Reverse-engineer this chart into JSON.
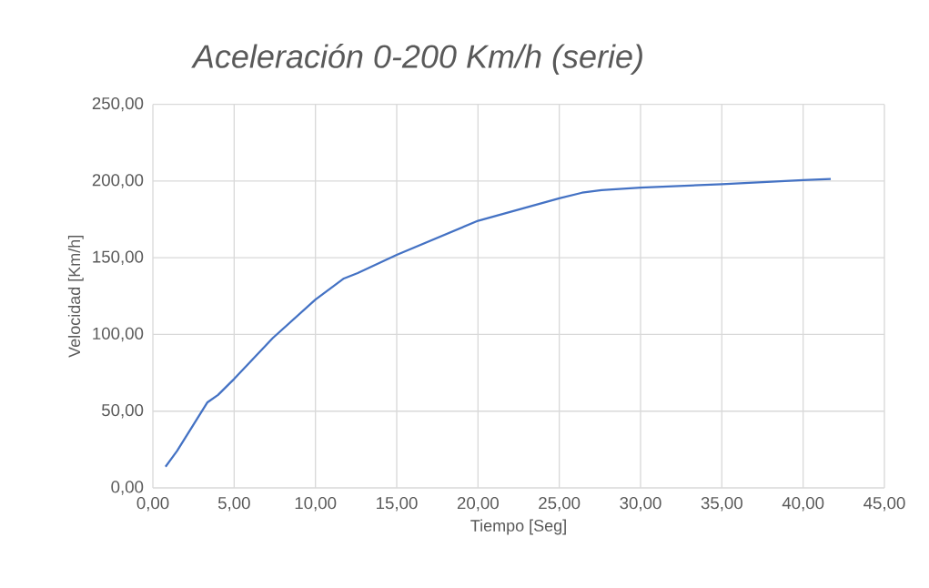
{
  "chart_data": {
    "type": "line",
    "title": "Aceleración 0-200 Km/h (serie)",
    "xlabel": "Tiempo [Seg]",
    "ylabel": "Velocidad [Km/h]",
    "x": [
      0.78,
      1.49,
      3.36,
      4.01,
      5,
      7.37,
      10,
      11.75,
      12.6,
      15,
      20,
      25,
      26.4,
      27.6,
      30,
      35,
      40,
      41.7
    ],
    "values": [
      13.8,
      24.1,
      55.8,
      60.6,
      71,
      97.6,
      122.7,
      136.5,
      140,
      151.9,
      174.1,
      188.8,
      192.4,
      194.1,
      195.7,
      198,
      200.6,
      201.4
    ],
    "color": "#4472c4",
    "xlim": [
      0,
      45
    ],
    "ylim": [
      0,
      250
    ],
    "xticks": [
      {
        "value": 0,
        "label": "0,00"
      },
      {
        "value": 5,
        "label": "5,00"
      },
      {
        "value": 10,
        "label": "10,00"
      },
      {
        "value": 15,
        "label": "15,00"
      },
      {
        "value": 20,
        "label": "20,00"
      },
      {
        "value": 25,
        "label": "25,00"
      },
      {
        "value": 30,
        "label": "30,00"
      },
      {
        "value": 35,
        "label": "35,00"
      },
      {
        "value": 40,
        "label": "40,00"
      },
      {
        "value": 45,
        "label": "45,00"
      }
    ],
    "yticks": [
      {
        "value": 0,
        "label": "0,00"
      },
      {
        "value": 50,
        "label": "50,00"
      },
      {
        "value": 100,
        "label": "100,00"
      },
      {
        "value": 150,
        "label": "150,00"
      },
      {
        "value": 200,
        "label": "200,00"
      },
      {
        "value": 250,
        "label": "250,00"
      }
    ],
    "grid": true,
    "marker": "none",
    "line_style": "solid"
  }
}
